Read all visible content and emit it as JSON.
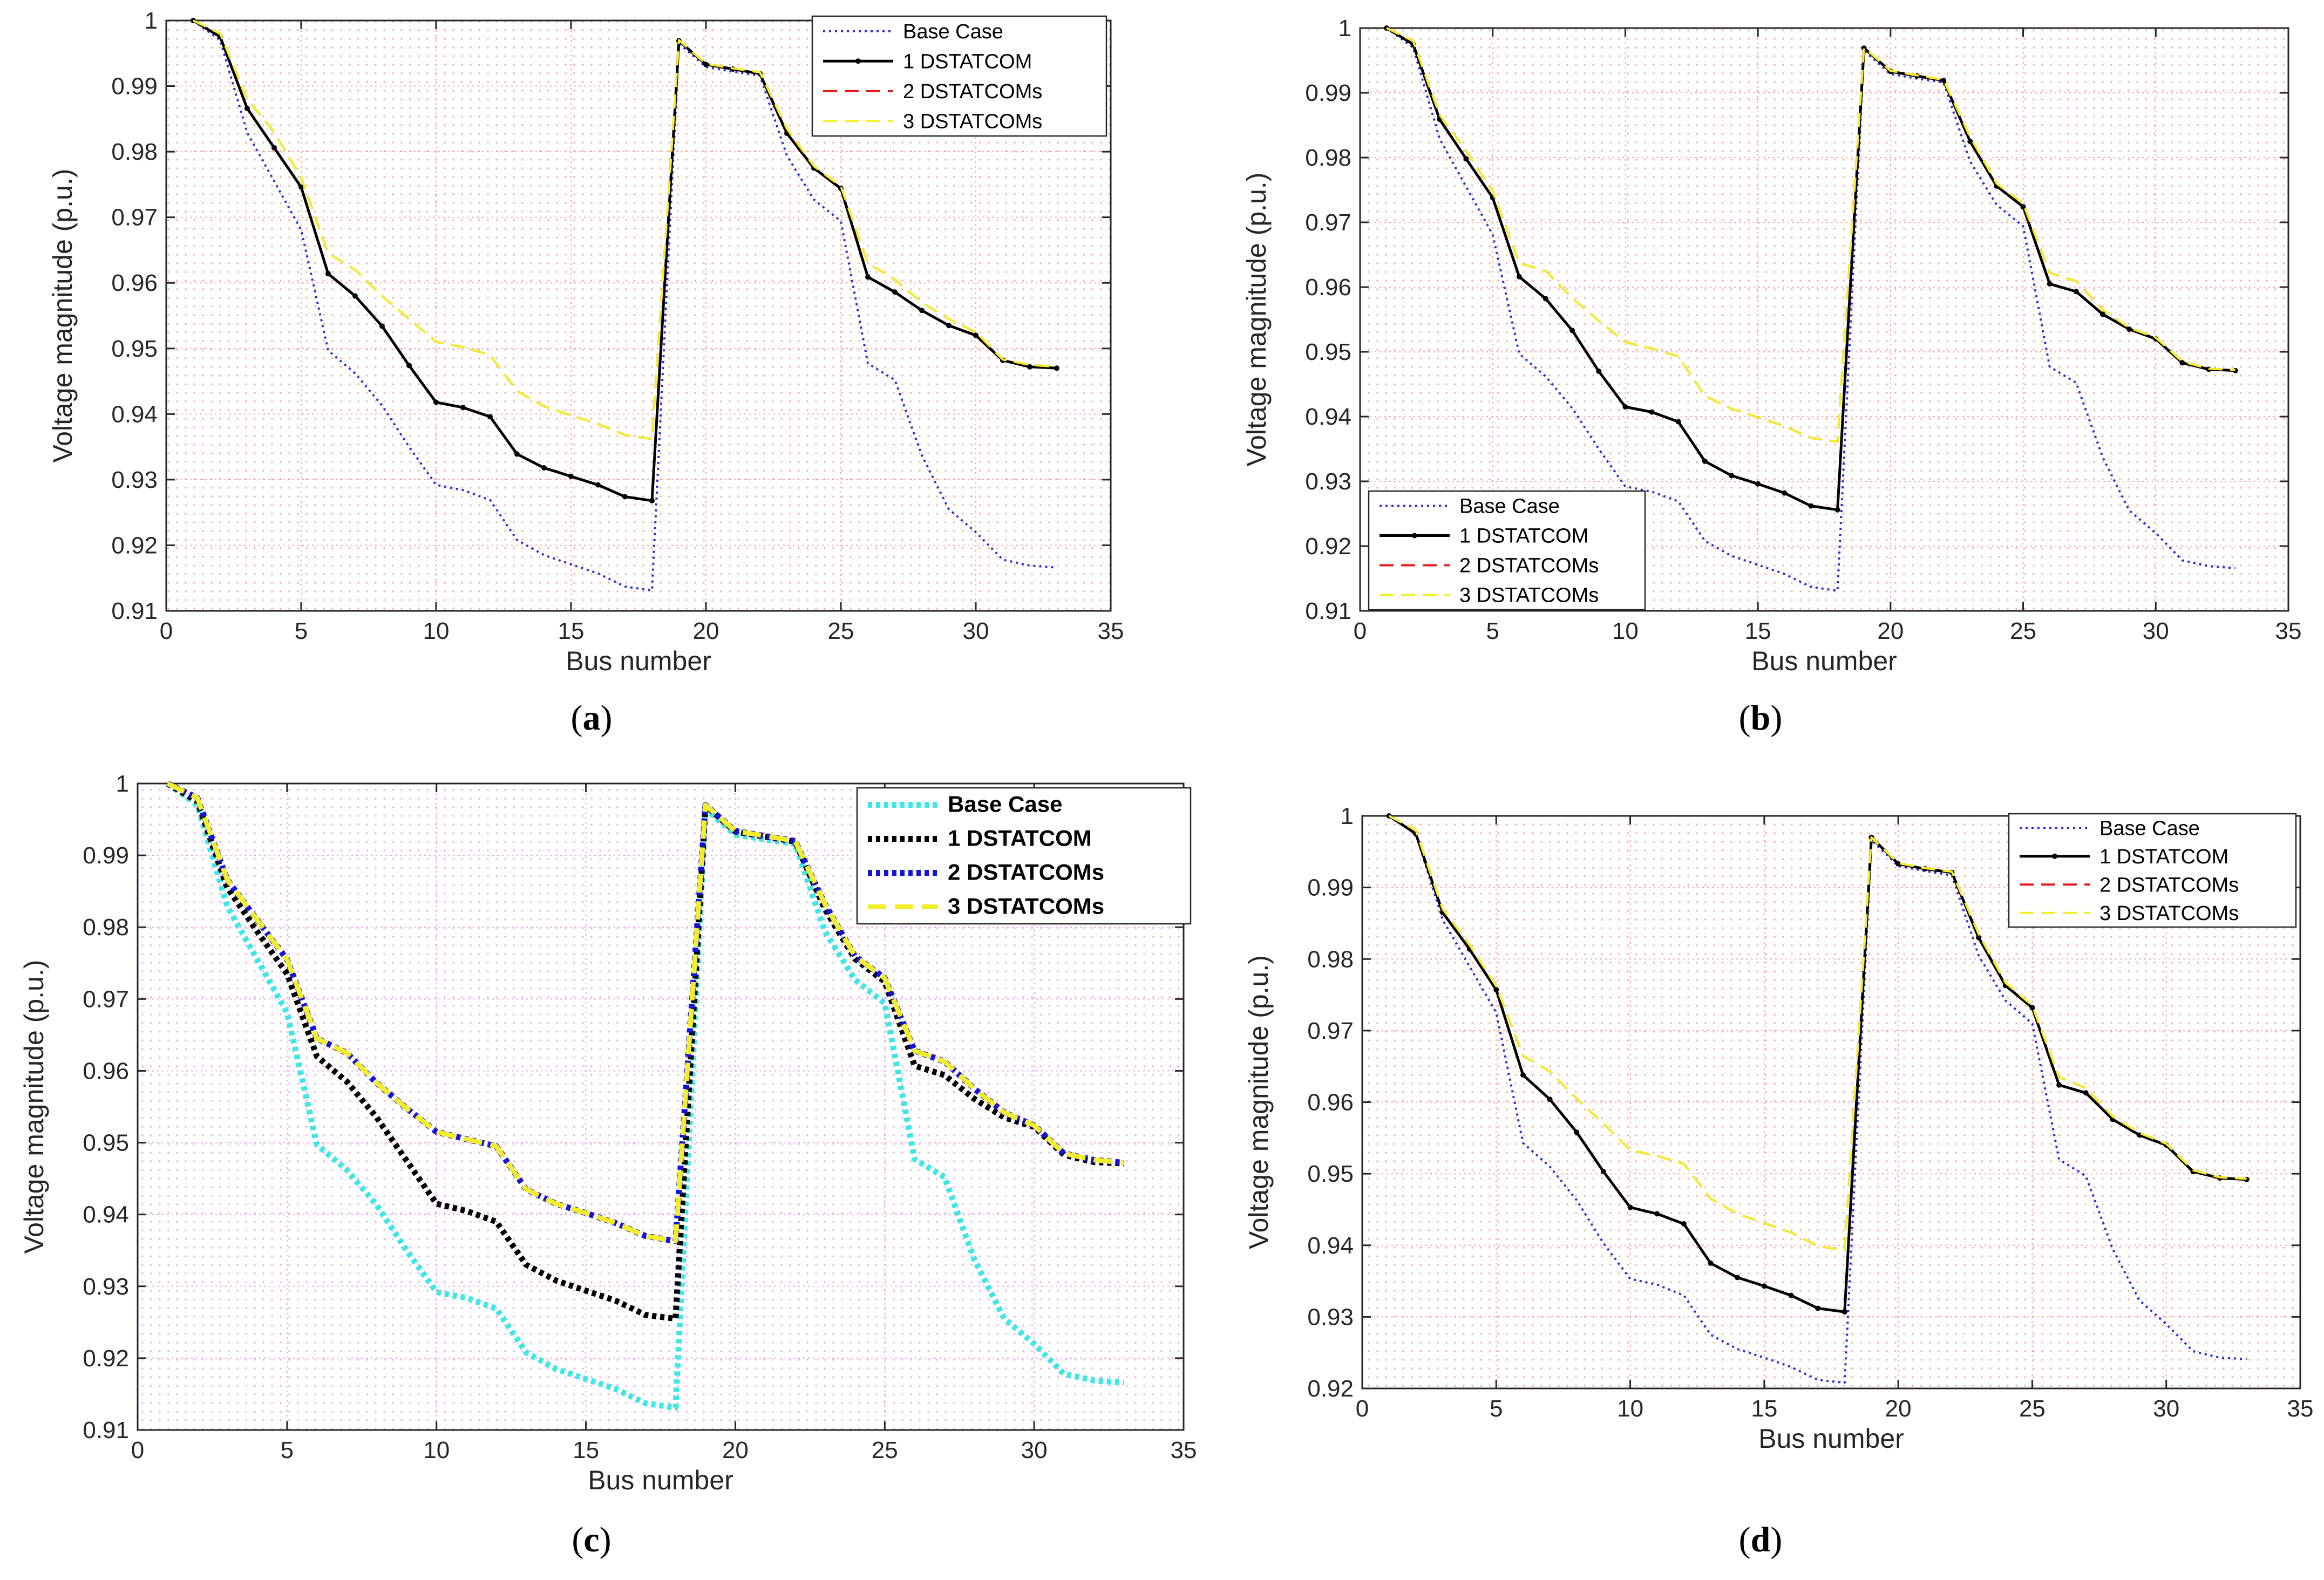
{
  "colors": {
    "base": "#2b2bd9",
    "one": "#000000",
    "two": "#e41a1c",
    "three": "#f2ee2a",
    "base_c": "#3fe6e6",
    "two_c": "#1414d8",
    "grid_red": "#f2a6a6",
    "grid_magenta": "#e8a2e8"
  },
  "chart_data": [
    {
      "id": "a",
      "type": "line",
      "caption": "a",
      "xlabel": "Bus number",
      "ylabel": "Voltage magnitude (p.u.)",
      "xlim": [
        0,
        35
      ],
      "ylim": [
        0.91,
        1.0
      ],
      "xticks": [
        0,
        5,
        10,
        15,
        20,
        25,
        30,
        35
      ],
      "yticks": [
        0.91,
        0.92,
        0.93,
        0.94,
        0.95,
        0.96,
        0.97,
        0.98,
        0.99,
        1
      ],
      "ytick_labels": [
        "0.91",
        "0.92",
        "0.93",
        "0.94",
        "0.95",
        "0.96",
        "0.97",
        "0.98",
        "0.99",
        "1"
      ],
      "legend_position": "top-right",
      "x": [
        1,
        2,
        3,
        4,
        5,
        6,
        7,
        8,
        9,
        10,
        11,
        12,
        13,
        14,
        15,
        16,
        17,
        18,
        19,
        20,
        21,
        22,
        23,
        24,
        25,
        26,
        27,
        28,
        29,
        30,
        31,
        32,
        33
      ],
      "series": [
        {
          "name": "Base Case",
          "values": [
            1.0,
            0.997,
            0.9829,
            0.9755,
            0.9681,
            0.9497,
            0.9462,
            0.9413,
            0.935,
            0.9292,
            0.9284,
            0.9269,
            0.9208,
            0.9185,
            0.9171,
            0.9157,
            0.9137,
            0.9131,
            0.9965,
            0.9929,
            0.9922,
            0.9916,
            0.9794,
            0.9727,
            0.9694,
            0.9477,
            0.9452,
            0.9337,
            0.9255,
            0.922,
            0.9178,
            0.9169,
            0.9166
          ]
        },
        {
          "name": "1 DSTATCOM",
          "values": [
            1.0,
            0.9975,
            0.9866,
            0.9806,
            0.9746,
            0.9614,
            0.958,
            0.9534,
            0.9474,
            0.9418,
            0.941,
            0.9396,
            0.9339,
            0.9318,
            0.9305,
            0.9292,
            0.9274,
            0.9268,
            0.9969,
            0.9933,
            0.9926,
            0.9919,
            0.9828,
            0.9775,
            0.9744,
            0.9609,
            0.9586,
            0.9558,
            0.9535,
            0.952,
            0.9482,
            0.9472,
            0.947
          ]
        },
        {
          "name": "2 DSTATCOMs",
          "values": [
            1.0,
            0.998,
            0.988,
            0.983,
            0.976,
            0.9645,
            0.962,
            0.958,
            0.9545,
            0.951,
            0.9502,
            0.949,
            0.9435,
            0.9412,
            0.9398,
            0.9385,
            0.9368,
            0.9362,
            0.997,
            0.9934,
            0.9927,
            0.9921,
            0.9835,
            0.9778,
            0.9747,
            0.963,
            0.9605,
            0.957,
            0.9545,
            0.9525,
            0.9483,
            0.9475,
            0.9472
          ]
        },
        {
          "name": "3 DSTATCOMs",
          "values": [
            1.0,
            0.998,
            0.988,
            0.983,
            0.976,
            0.9645,
            0.962,
            0.958,
            0.9545,
            0.951,
            0.9502,
            0.949,
            0.9435,
            0.9412,
            0.9398,
            0.9385,
            0.9368,
            0.9362,
            0.997,
            0.9934,
            0.9927,
            0.9921,
            0.9835,
            0.9778,
            0.9747,
            0.963,
            0.9605,
            0.957,
            0.9545,
            0.9525,
            0.9483,
            0.9475,
            0.9472
          ]
        }
      ]
    },
    {
      "id": "b",
      "type": "line",
      "caption": "b",
      "xlabel": "Bus number",
      "ylabel": "Voltage magnitude (p.u.)",
      "xlim": [
        0,
        35
      ],
      "ylim": [
        0.91,
        1.0
      ],
      "xticks": [
        0,
        5,
        10,
        15,
        20,
        25,
        30,
        35
      ],
      "yticks": [
        0.91,
        0.92,
        0.93,
        0.94,
        0.95,
        0.96,
        0.97,
        0.98,
        0.99,
        1
      ],
      "ytick_labels": [
        "0.91",
        "0.92",
        "0.93",
        "0.94",
        "0.95",
        "0.96",
        "0.97",
        "0.98",
        "0.99",
        "1"
      ],
      "legend_position": "bottom-left",
      "x": [
        1,
        2,
        3,
        4,
        5,
        6,
        7,
        8,
        9,
        10,
        11,
        12,
        13,
        14,
        15,
        16,
        17,
        18,
        19,
        20,
        21,
        22,
        23,
        24,
        25,
        26,
        27,
        28,
        29,
        30,
        31,
        32,
        33
      ],
      "series": [
        {
          "name": "Base Case",
          "values": [
            1.0,
            0.997,
            0.9829,
            0.9755,
            0.9681,
            0.9497,
            0.9462,
            0.9413,
            0.935,
            0.9292,
            0.9284,
            0.9269,
            0.9208,
            0.9185,
            0.9171,
            0.9157,
            0.9137,
            0.9131,
            0.9965,
            0.9929,
            0.9922,
            0.9916,
            0.9794,
            0.9727,
            0.9694,
            0.9477,
            0.9452,
            0.9337,
            0.9255,
            0.922,
            0.9178,
            0.9169,
            0.9166
          ]
        },
        {
          "name": "1 DSTATCOM",
          "values": [
            1.0,
            0.9975,
            0.9859,
            0.9798,
            0.9738,
            0.9616,
            0.9582,
            0.9533,
            0.947,
            0.9415,
            0.9407,
            0.9392,
            0.9331,
            0.9309,
            0.9296,
            0.9282,
            0.9262,
            0.9256,
            0.9969,
            0.9933,
            0.9926,
            0.9919,
            0.9825,
            0.9756,
            0.9724,
            0.9605,
            0.9593,
            0.9558,
            0.9535,
            0.952,
            0.9483,
            0.9473,
            0.9471
          ]
        },
        {
          "name": "2 DSTATCOMs",
          "values": [
            1.0,
            0.998,
            0.9866,
            0.981,
            0.9748,
            0.9637,
            0.9625,
            0.9583,
            0.9548,
            0.9515,
            0.9505,
            0.9493,
            0.9432,
            0.9412,
            0.9399,
            0.9385,
            0.9367,
            0.9361,
            0.997,
            0.9934,
            0.9927,
            0.992,
            0.9832,
            0.976,
            0.9729,
            0.9622,
            0.9609,
            0.9565,
            0.9537,
            0.9522,
            0.9485,
            0.9474,
            0.9472
          ]
        },
        {
          "name": "3 DSTATCOMs",
          "values": [
            1.0,
            0.998,
            0.9866,
            0.981,
            0.9748,
            0.9637,
            0.9625,
            0.9583,
            0.9548,
            0.9515,
            0.9505,
            0.9493,
            0.9432,
            0.9412,
            0.9399,
            0.9385,
            0.9367,
            0.9361,
            0.997,
            0.9934,
            0.9927,
            0.992,
            0.9832,
            0.976,
            0.9729,
            0.9622,
            0.9609,
            0.9565,
            0.9537,
            0.9522,
            0.9485,
            0.9474,
            0.9472
          ]
        }
      ]
    },
    {
      "id": "c",
      "type": "line",
      "caption": "c",
      "xlabel": "Bus number",
      "ylabel": "Voltage magnitude (p.u.)",
      "xlim": [
        0,
        35
      ],
      "ylim": [
        0.91,
        1.0
      ],
      "xticks": [
        0,
        5,
        10,
        15,
        20,
        25,
        30,
        35
      ],
      "yticks": [
        0.91,
        0.92,
        0.93,
        0.94,
        0.95,
        0.96,
        0.97,
        0.98,
        0.99,
        1
      ],
      "ytick_labels": [
        "0.91",
        "0.92",
        "0.93",
        "0.94",
        "0.95",
        "0.96",
        "0.97",
        "0.98",
        "0.99",
        "1"
      ],
      "legend_position": "top-right",
      "x": [
        1,
        2,
        3,
        4,
        5,
        6,
        7,
        8,
        9,
        10,
        11,
        12,
        13,
        14,
        15,
        16,
        17,
        18,
        19,
        20,
        21,
        22,
        23,
        24,
        25,
        26,
        27,
        28,
        29,
        30,
        31,
        32,
        33
      ],
      "series": [
        {
          "name": "Base Case",
          "values": [
            1.0,
            0.997,
            0.9829,
            0.9755,
            0.9681,
            0.9497,
            0.9462,
            0.9413,
            0.935,
            0.9292,
            0.9284,
            0.9269,
            0.9208,
            0.9185,
            0.9171,
            0.9157,
            0.9137,
            0.9131,
            0.9965,
            0.9929,
            0.9922,
            0.9916,
            0.9794,
            0.9727,
            0.9694,
            0.9477,
            0.9452,
            0.9337,
            0.9255,
            0.922,
            0.9178,
            0.9169,
            0.9166
          ]
        },
        {
          "name": "1 DSTATCOM",
          "values": [
            1.0,
            0.9975,
            0.9855,
            0.9794,
            0.9735,
            0.962,
            0.9585,
            0.9535,
            0.9475,
            0.9415,
            0.9405,
            0.939,
            0.933,
            0.9308,
            0.9294,
            0.928,
            0.926,
            0.9255,
            0.9969,
            0.9933,
            0.9926,
            0.9919,
            0.9825,
            0.9756,
            0.9724,
            0.9607,
            0.9594,
            0.9561,
            0.9535,
            0.9522,
            0.9483,
            0.9473,
            0.9471
          ]
        },
        {
          "name": "2 DSTATCOMs",
          "values": [
            1.0,
            0.998,
            0.9866,
            0.981,
            0.9755,
            0.9645,
            0.9625,
            0.9583,
            0.9548,
            0.9515,
            0.9505,
            0.9495,
            0.9435,
            0.9415,
            0.9402,
            0.9388,
            0.937,
            0.9363,
            0.997,
            0.9934,
            0.9927,
            0.992,
            0.9832,
            0.976,
            0.9729,
            0.9628,
            0.9613,
            0.9575,
            0.9542,
            0.9524,
            0.9485,
            0.9476,
            0.9472
          ]
        },
        {
          "name": "3 DSTATCOMs",
          "values": [
            1.0,
            0.998,
            0.9866,
            0.981,
            0.9755,
            0.9645,
            0.9625,
            0.9583,
            0.9548,
            0.9515,
            0.9505,
            0.9495,
            0.9435,
            0.9415,
            0.9402,
            0.9388,
            0.937,
            0.9363,
            0.997,
            0.9934,
            0.9927,
            0.992,
            0.9832,
            0.976,
            0.9729,
            0.9628,
            0.9613,
            0.9575,
            0.9542,
            0.9524,
            0.9485,
            0.9476,
            0.9472
          ]
        }
      ]
    },
    {
      "id": "d",
      "type": "line",
      "caption": "d",
      "xlabel": "Bus number",
      "ylabel": "Voltage magnitude (p.u.)",
      "xlim": [
        0,
        35
      ],
      "ylim": [
        0.92,
        1.0
      ],
      "xticks": [
        0,
        5,
        10,
        15,
        20,
        25,
        30,
        35
      ],
      "yticks": [
        0.92,
        0.93,
        0.94,
        0.95,
        0.96,
        0.97,
        0.98,
        0.99,
        1
      ],
      "ytick_labels": [
        "0.92",
        "0.93",
        "0.94",
        "0.95",
        "0.96",
        "0.97",
        "0.98",
        "0.99",
        "1"
      ],
      "legend_position": "top-right",
      "x": [
        1,
        2,
        3,
        4,
        5,
        6,
        7,
        8,
        9,
        10,
        11,
        12,
        13,
        14,
        15,
        16,
        17,
        18,
        19,
        20,
        21,
        22,
        23,
        24,
        25,
        26,
        27,
        28,
        29,
        30,
        31,
        32,
        33
      ],
      "series": [
        {
          "name": "Base Case",
          "values": [
            1.0,
            0.9975,
            0.9855,
            0.979,
            0.9725,
            0.9543,
            0.951,
            0.9463,
            0.9403,
            0.9353,
            0.9345,
            0.933,
            0.9275,
            0.9255,
            0.9243,
            0.923,
            0.9212,
            0.9208,
            0.9966,
            0.993,
            0.9923,
            0.9917,
            0.9805,
            0.9742,
            0.971,
            0.952,
            0.9497,
            0.9395,
            0.9323,
            0.929,
            0.9252,
            0.9243,
            0.9241
          ]
        },
        {
          "name": "1 DSTATCOM",
          "values": [
            1.0,
            0.9975,
            0.9865,
            0.9814,
            0.9757,
            0.9638,
            0.9604,
            0.9558,
            0.9503,
            0.9453,
            0.9444,
            0.943,
            0.9375,
            0.9355,
            0.9343,
            0.933,
            0.9312,
            0.9307,
            0.997,
            0.9933,
            0.9926,
            0.9921,
            0.983,
            0.9763,
            0.9732,
            0.9624,
            0.9613,
            0.9576,
            0.9554,
            0.954,
            0.9503,
            0.9494,
            0.9492
          ]
        },
        {
          "name": "2 DSTATCOMs",
          "values": [
            1.0,
            0.998,
            0.987,
            0.982,
            0.9762,
            0.9665,
            0.9643,
            0.9605,
            0.957,
            0.9533,
            0.9525,
            0.9514,
            0.9465,
            0.9444,
            0.9431,
            0.9418,
            0.9399,
            0.9393,
            0.997,
            0.9934,
            0.9927,
            0.9922,
            0.9835,
            0.9767,
            0.9735,
            0.9635,
            0.962,
            0.958,
            0.9557,
            0.9542,
            0.9505,
            0.9495,
            0.9493
          ]
        },
        {
          "name": "3 DSTATCOMs",
          "values": [
            1.0,
            0.998,
            0.987,
            0.982,
            0.9762,
            0.9665,
            0.9643,
            0.9605,
            0.957,
            0.9533,
            0.9525,
            0.9514,
            0.9465,
            0.9444,
            0.9431,
            0.9418,
            0.9399,
            0.9393,
            0.997,
            0.9934,
            0.9927,
            0.9922,
            0.9835,
            0.9767,
            0.9735,
            0.9635,
            0.962,
            0.958,
            0.9557,
            0.9542,
            0.9505,
            0.9495,
            0.9493
          ]
        }
      ]
    }
  ]
}
